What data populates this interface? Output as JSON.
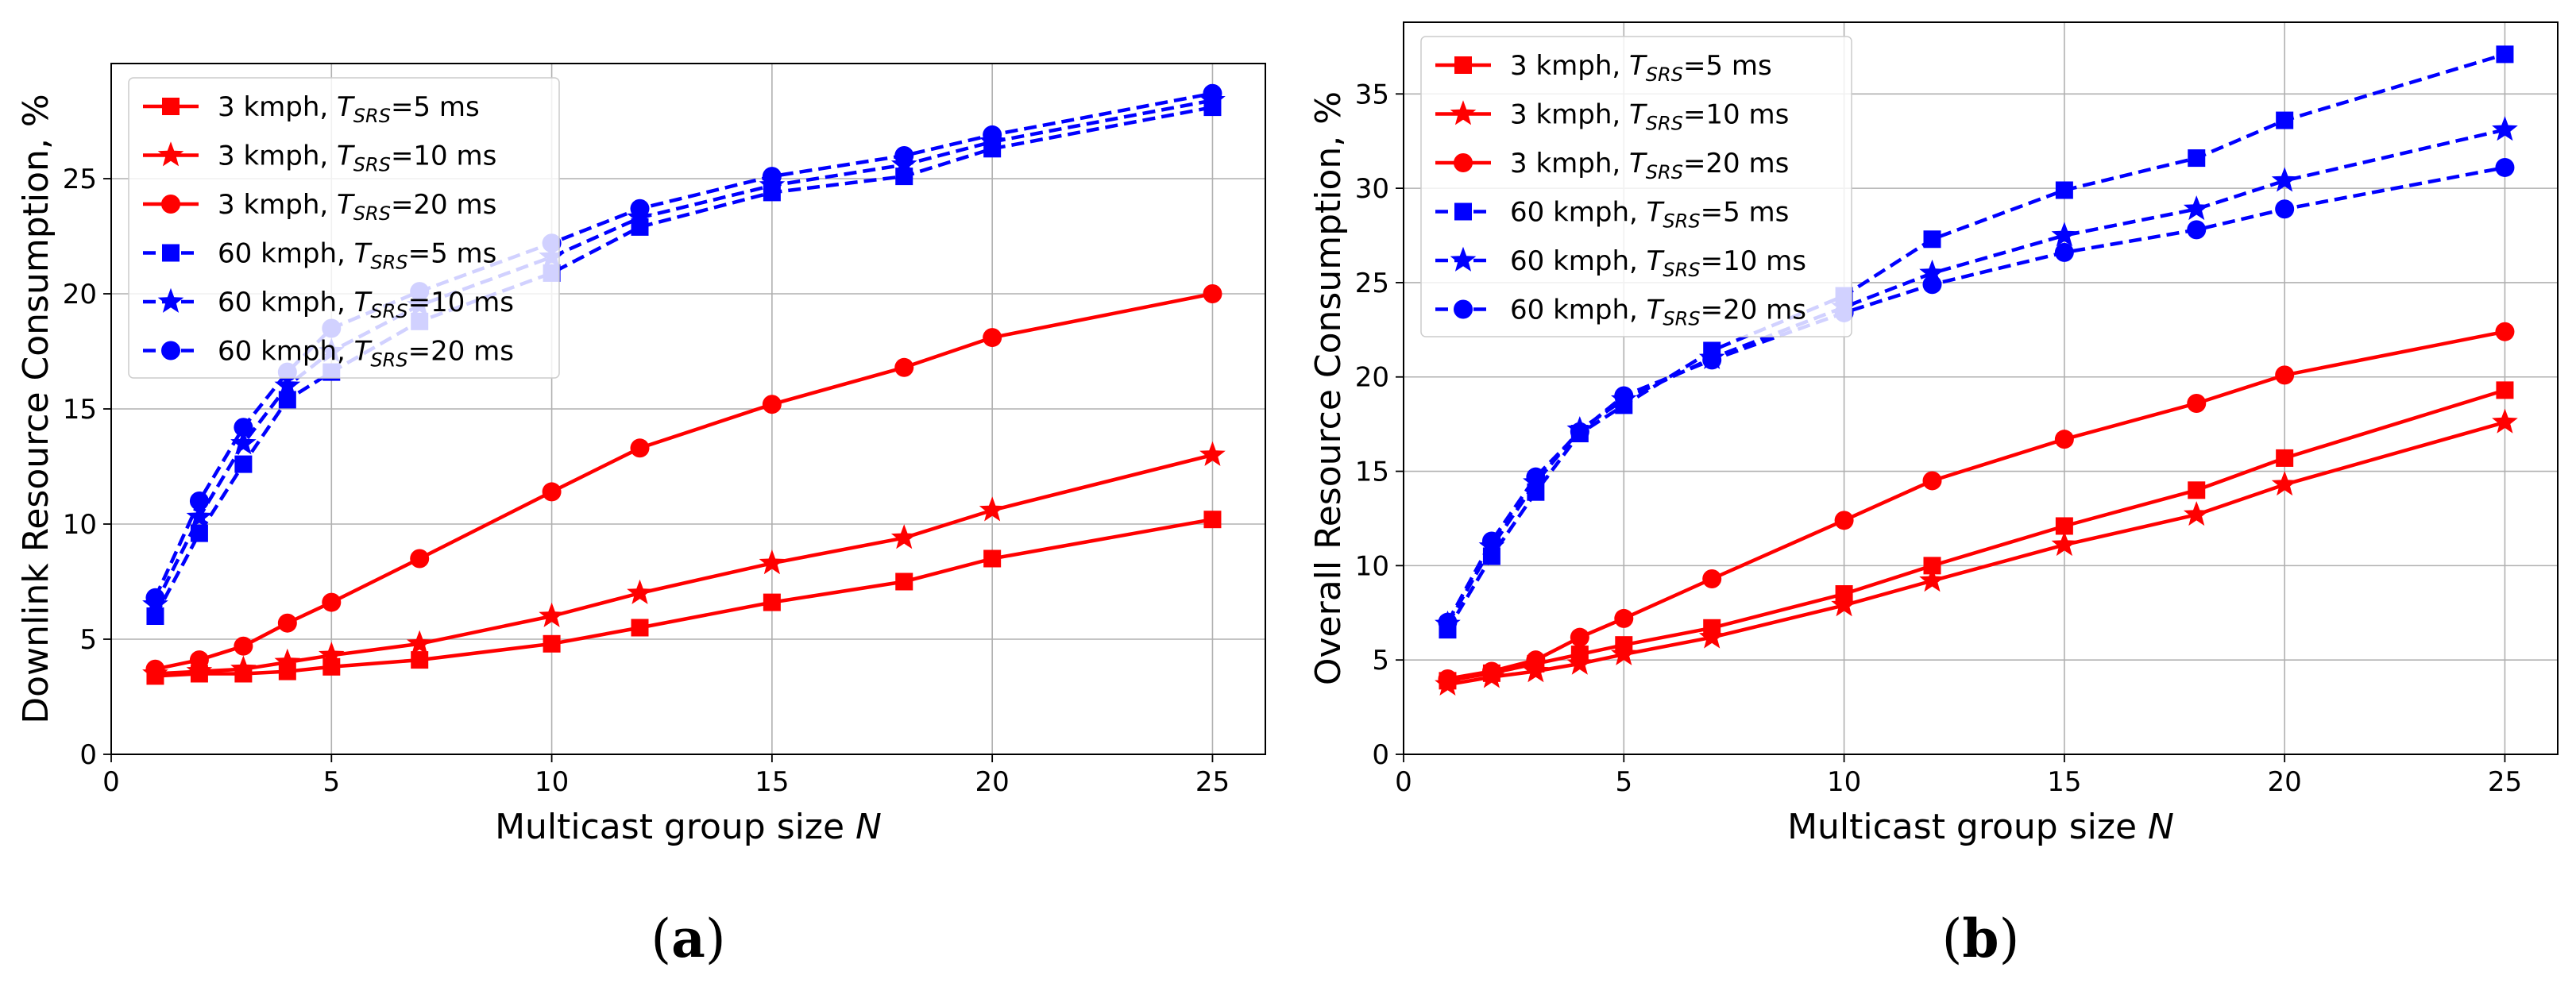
{
  "chart_data": [
    {
      "type": "line",
      "panel_label": "(a)",
      "title": "",
      "xlabel": "Multicast group size N",
      "xlabel_base": "Multicast group size ",
      "xlabel_var": "N",
      "ylabel": "Downlink Resource Consumption, %",
      "xlim": [
        0,
        26.2
      ],
      "ylim": [
        0,
        30
      ],
      "xticks": [
        0,
        5,
        10,
        15,
        20,
        25
      ],
      "yticks": [
        0,
        5,
        10,
        15,
        20,
        25
      ],
      "grid": true,
      "legend_position": "upper-left",
      "series": [
        {
          "name": "3 kmph, T_SRS=5 ms",
          "legend_prefix": "3 kmph, ",
          "legend_value": "=5 ms",
          "color": "#ff0000",
          "marker": "square",
          "dash": "solid",
          "x": [
            1,
            2,
            3,
            4,
            5,
            7,
            10,
            12,
            15,
            18,
            20,
            25
          ],
          "y": [
            3.4,
            3.5,
            3.5,
            3.6,
            3.8,
            4.1,
            4.8,
            5.5,
            6.6,
            7.5,
            8.5,
            10.2
          ]
        },
        {
          "name": "3 kmph, T_SRS=10 ms",
          "legend_prefix": "3 kmph, ",
          "legend_value": "=10 ms",
          "color": "#ff0000",
          "marker": "star",
          "dash": "solid",
          "x": [
            1,
            2,
            3,
            4,
            5,
            7,
            10,
            12,
            15,
            18,
            20,
            25
          ],
          "y": [
            3.5,
            3.6,
            3.7,
            4.0,
            4.3,
            4.8,
            6.0,
            7.0,
            8.3,
            9.4,
            10.6,
            13.0
          ]
        },
        {
          "name": "3 kmph, T_SRS=20 ms",
          "legend_prefix": "3 kmph, ",
          "legend_value": "=20 ms",
          "color": "#ff0000",
          "marker": "circle",
          "dash": "solid",
          "x": [
            1,
            2,
            3,
            4,
            5,
            7,
            10,
            12,
            15,
            18,
            20,
            25
          ],
          "y": [
            3.7,
            4.1,
            4.7,
            5.7,
            6.6,
            8.5,
            11.4,
            13.3,
            15.2,
            16.8,
            18.1,
            20.0
          ]
        },
        {
          "name": "60 kmph, T_SRS=5 ms",
          "legend_prefix": "60 kmph, ",
          "legend_value": "=5 ms",
          "color": "#0000ff",
          "marker": "square",
          "dash": "dashed",
          "x": [
            1,
            2,
            3,
            4,
            5,
            7,
            10,
            12,
            15,
            18,
            20,
            25
          ],
          "y": [
            6.0,
            9.6,
            12.6,
            15.4,
            16.6,
            18.8,
            20.9,
            22.9,
            24.4,
            25.1,
            26.3,
            28.1
          ]
        },
        {
          "name": "60 kmph, T_SRS=10 ms",
          "legend_prefix": "60 kmph, ",
          "legend_value": "=10 ms",
          "color": "#0000ff",
          "marker": "star",
          "dash": "dashed",
          "x": [
            1,
            2,
            3,
            4,
            5,
            7,
            10,
            12,
            15,
            18,
            20,
            25
          ],
          "y": [
            6.5,
            10.3,
            13.5,
            16.0,
            17.5,
            19.5,
            21.6,
            23.3,
            24.7,
            25.6,
            26.6,
            28.4
          ]
        },
        {
          "name": "60 kmph, T_SRS=20 ms",
          "legend_prefix": "60 kmph, ",
          "legend_value": "=20 ms",
          "color": "#0000ff",
          "marker": "circle",
          "dash": "dashed",
          "x": [
            1,
            2,
            3,
            4,
            5,
            7,
            10,
            12,
            15,
            18,
            20,
            25
          ],
          "y": [
            6.8,
            11.0,
            14.2,
            16.6,
            18.5,
            20.1,
            22.2,
            23.7,
            25.1,
            26.0,
            26.9,
            28.7
          ]
        }
      ]
    },
    {
      "type": "line",
      "panel_label": "(b)",
      "title": "",
      "xlabel": "Multicast group size N",
      "xlabel_base": "Multicast group size ",
      "xlabel_var": "N",
      "ylabel": "Overall Resource Consumption, %",
      "xlim": [
        0,
        26.2
      ],
      "ylim": [
        0,
        38.8
      ],
      "xticks": [
        0,
        5,
        10,
        15,
        20,
        25
      ],
      "yticks": [
        0,
        5,
        10,
        15,
        20,
        25,
        30,
        35
      ],
      "grid": true,
      "legend_position": "upper-left",
      "series": [
        {
          "name": "3 kmph, T_SRS=5 ms",
          "legend_prefix": "3 kmph, ",
          "legend_value": "=5 ms",
          "color": "#ff0000",
          "marker": "square",
          "dash": "solid",
          "x": [
            1,
            2,
            3,
            4,
            5,
            7,
            10,
            12,
            15,
            18,
            20,
            25
          ],
          "y": [
            3.9,
            4.3,
            4.8,
            5.3,
            5.8,
            6.7,
            8.5,
            10.0,
            12.1,
            14.0,
            15.7,
            19.3
          ]
        },
        {
          "name": "3 kmph, T_SRS=10 ms",
          "legend_prefix": "3 kmph, ",
          "legend_value": "=10 ms",
          "color": "#ff0000",
          "marker": "star",
          "dash": "solid",
          "x": [
            1,
            2,
            3,
            4,
            5,
            7,
            10,
            12,
            15,
            18,
            20,
            25
          ],
          "y": [
            3.7,
            4.1,
            4.4,
            4.8,
            5.3,
            6.2,
            7.9,
            9.2,
            11.1,
            12.7,
            14.3,
            17.6
          ]
        },
        {
          "name": "3 kmph, T_SRS=20 ms",
          "legend_prefix": "3 kmph, ",
          "legend_value": "=20 ms",
          "color": "#ff0000",
          "marker": "circle",
          "dash": "solid",
          "x": [
            1,
            2,
            3,
            4,
            5,
            7,
            10,
            12,
            15,
            18,
            20,
            25
          ],
          "y": [
            4.0,
            4.4,
            5.0,
            6.2,
            7.2,
            9.3,
            12.4,
            14.5,
            16.7,
            18.6,
            20.1,
            22.4
          ]
        },
        {
          "name": "60 kmph, T_SRS=5 ms",
          "legend_prefix": "60 kmph, ",
          "legend_value": "=5 ms",
          "color": "#0000ff",
          "marker": "square",
          "dash": "dashed",
          "x": [
            1,
            2,
            3,
            4,
            5,
            7,
            10,
            12,
            15,
            18,
            20,
            25
          ],
          "y": [
            6.6,
            10.5,
            13.9,
            17.0,
            18.5,
            21.4,
            24.3,
            27.3,
            29.9,
            31.6,
            33.6,
            37.1
          ]
        },
        {
          "name": "60 kmph, T_SRS=10 ms",
          "legend_prefix": "60 kmph, ",
          "legend_value": "=10 ms",
          "color": "#0000ff",
          "marker": "star",
          "dash": "dashed",
          "x": [
            1,
            2,
            3,
            4,
            5,
            7,
            10,
            12,
            15,
            18,
            20,
            25
          ],
          "y": [
            6.9,
            11.0,
            14.4,
            17.2,
            18.8,
            21.0,
            23.7,
            25.5,
            27.5,
            28.9,
            30.4,
            33.1
          ]
        },
        {
          "name": "60 kmph, T_SRS=20 ms",
          "legend_prefix": "60 kmph, ",
          "legend_value": "=20 ms",
          "color": "#0000ff",
          "marker": "circle",
          "dash": "dashed",
          "x": [
            1,
            2,
            3,
            4,
            5,
            7,
            10,
            12,
            15,
            18,
            20,
            25
          ],
          "y": [
            7.0,
            11.3,
            14.7,
            17.1,
            19.0,
            20.9,
            23.4,
            24.9,
            26.6,
            27.8,
            28.9,
            31.1
          ]
        }
      ]
    }
  ]
}
